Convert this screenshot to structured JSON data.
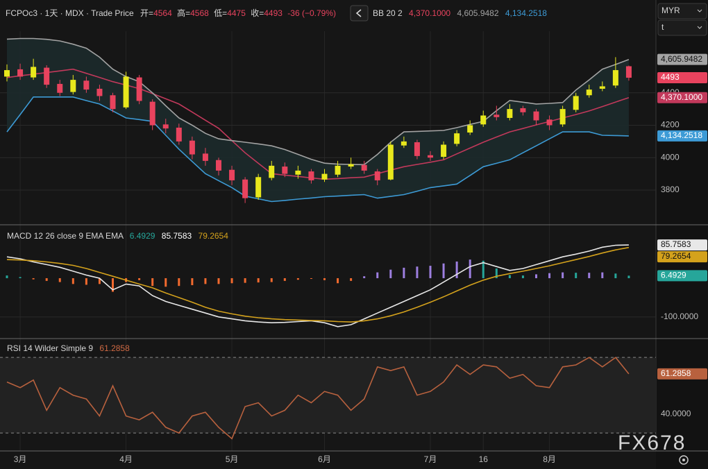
{
  "header": {
    "symbol": "FCPOc3 · 1天 · MDX · Trade Price",
    "open_label": "开=",
    "high_label": "高=",
    "low_label": "低=",
    "close_label": "收=",
    "change": "-36 (−0.79%)"
  },
  "controls": {
    "currency": "MYR",
    "field": "t"
  },
  "watermark": "FX678",
  "chart_data": [
    {
      "type": "candlestick",
      "categories": [
        null,
        "3月",
        null,
        null,
        null,
        null,
        null,
        null,
        null,
        "4月",
        null,
        null,
        null,
        null,
        null,
        null,
        null,
        "5月",
        null,
        null,
        null,
        null,
        null,
        null,
        "6月",
        null,
        null,
        null,
        null,
        null,
        null,
        null,
        "7月",
        null,
        null,
        null,
        "16",
        null,
        null,
        null,
        null,
        "8月",
        null,
        null,
        null,
        null,
        null,
        null
      ],
      "open": [
        4500,
        4545,
        4495,
        4555,
        4455,
        4405,
        4475,
        4425,
        4385,
        4310,
        4495,
        4345,
        4205,
        4185,
        4105,
        4025,
        3985,
        3925,
        3865,
        3755,
        3875,
        3945,
        3895,
        3915,
        3865,
        3895,
        3945,
        3955,
        3915,
        3865,
        4075,
        4095,
        4015,
        4005,
        4085,
        4155,
        4205,
        4265,
        4245,
        4305,
        4285,
        4235,
        4205,
        4295,
        4385,
        4425,
        4445,
        4564
      ],
      "high": [
        4575,
        4580,
        4610,
        4570,
        4480,
        4510,
        4500,
        4450,
        4400,
        4530,
        4510,
        4360,
        4240,
        4210,
        4130,
        4060,
        4000,
        3950,
        3880,
        3900,
        3980,
        3970,
        3950,
        3930,
        3930,
        3980,
        4000,
        3980,
        3930,
        4100,
        4130,
        4110,
        4040,
        4100,
        4170,
        4230,
        4290,
        4320,
        4330,
        4320,
        4300,
        4260,
        4320,
        4400,
        4450,
        4470,
        4620,
        4568
      ],
      "low": [
        4470,
        4480,
        4480,
        4430,
        4380,
        4390,
        4400,
        4350,
        4280,
        4300,
        4330,
        4170,
        4150,
        4080,
        3990,
        3950,
        3890,
        3830,
        3720,
        3740,
        3860,
        3880,
        3870,
        3840,
        3850,
        3880,
        3930,
        3900,
        3830,
        3860,
        4060,
        3990,
        3980,
        3990,
        4070,
        4140,
        4190,
        4230,
        4230,
        4260,
        4200,
        4170,
        4190,
        4280,
        4370,
        4410,
        4430,
        4475
      ],
      "close": [
        4540,
        4500,
        4560,
        4450,
        4400,
        4480,
        4420,
        4380,
        4300,
        4500,
        4350,
        4200,
        4180,
        4100,
        4020,
        3980,
        3920,
        3860,
        3750,
        3880,
        3950,
        3900,
        3920,
        3860,
        3900,
        3950,
        3960,
        3920,
        3860,
        4080,
        4100,
        4010,
        4000,
        4080,
        4150,
        4200,
        4260,
        4250,
        4300,
        4280,
        4230,
        4200,
        4300,
        4380,
        4420,
        4440,
        4540,
        4493
      ],
      "up_color": "#e8e81c",
      "down_color": "#e8435e",
      "overlay": {
        "name": "BB 20 2",
        "fill": "#1c2a2b",
        "lines": [
          {
            "color": "#c2395b",
            "values": [
              4494,
              4505,
              4515,
              4525,
              4535,
              4546,
              4520,
              4495,
              4469,
              4448,
              4426,
              4395,
              4363,
              4331,
              4281,
              4231,
              4181,
              4105,
              4030,
              3965,
              3901,
              3892,
              3884,
              3875,
              3867,
              3871,
              3876,
              3880,
              3901,
              3923,
              3944,
              3958,
              3972,
              3987,
              4023,
              4059,
              4095,
              4127,
              4159,
              4180,
              4202,
              4223,
              4245,
              4266,
              4288,
              4315,
              4343,
              4370.1
            ]
          },
          {
            "color": "#a3a3a3",
            "values": [
              4731,
              4735,
              4735,
              4730,
              4720,
              4700,
              4675,
              4620,
              4546,
              4500,
              4469,
              4400,
              4320,
              4245,
              4200,
              4150,
              4116,
              4105,
              4095,
              4085,
              4073,
              4050,
              4020,
              3990,
              3966,
              3960,
              3958,
              3957,
              4020,
              4095,
              4159,
              4162,
              4165,
              4168,
              4185,
              4205,
              4224,
              4290,
              4353,
              4342,
              4331,
              4335,
              4340,
              4417,
              4480,
              4546,
              4575,
              4605.9482
            ]
          },
          {
            "color": "#3d9bd6",
            "values": [
              4159,
              4266,
              4374,
              4374,
              4374,
              4374,
              4352,
              4331,
              4288,
              4245,
              4235,
              4224,
              4138,
              4052,
              3976,
              3901,
              3858,
              3815,
              3763,
              3746,
              3729,
              3736,
              3744,
              3751,
              3759,
              3763,
              3768,
              3772,
              3750,
              3761,
              3772,
              3793,
              3815,
              3826,
              3837,
              3890,
              3944,
              3965,
              3987,
              4030,
              4073,
              4116,
              4159,
              4159,
              4159,
              4138,
              4136,
              4134.2518
            ]
          }
        ]
      },
      "price_labels": [
        {
          "value": 4370.1,
          "label": "4,370.1000"
        },
        {
          "value": 4605.9482,
          "label": "4,605.9482"
        },
        {
          "value": 4134.2518,
          "label": "4,134.2518"
        }
      ],
      "ylim": [
        3590,
        4780
      ],
      "yticks": [
        3800,
        4000,
        4200,
        4400
      ],
      "grid": true
    },
    {
      "type": "macd",
      "title": "MACD 12 26 close 9 EMA EMA",
      "series": [
        {
          "color": "#26a69a",
          "values": [
            7,
            3,
            -3,
            -7,
            -10,
            -15,
            -17,
            -15,
            -35,
            -10,
            -5,
            -20,
            -22,
            -20,
            -18,
            -15,
            -15,
            -13,
            -12,
            -11,
            -10,
            -7,
            -4,
            -1,
            -5,
            -13,
            -7,
            5,
            15,
            22,
            27,
            30,
            32,
            38,
            43,
            48,
            45,
            25,
            8,
            7,
            10,
            13,
            15,
            14,
            14,
            15,
            12,
            6.4929
          ]
        },
        {
          "color": "#e8e8e8",
          "values": [
            55,
            50,
            42,
            35,
            28,
            18,
            8,
            0,
            -30,
            -15,
            -20,
            -45,
            -60,
            -70,
            -80,
            -90,
            -100,
            -105,
            -110,
            -113,
            -115,
            -114,
            -112,
            -110,
            -115,
            -125,
            -120,
            -105,
            -90,
            -75,
            -60,
            -45,
            -30,
            -10,
            10,
            30,
            40,
            30,
            20,
            25,
            35,
            45,
            55,
            62,
            70,
            80,
            85,
            85.7583
          ]
        },
        {
          "color": "#d4a21c",
          "values": [
            48,
            47,
            45,
            42,
            38,
            33,
            25,
            15,
            5,
            -5,
            -15,
            -25,
            -38,
            -50,
            -62,
            -75,
            -85,
            -92,
            -98,
            -102,
            -105,
            -107,
            -108,
            -109,
            -110,
            -112,
            -113,
            -110,
            -105,
            -97,
            -87,
            -75,
            -62,
            -48,
            -33,
            -18,
            -5,
            5,
            12,
            18,
            25,
            32,
            40,
            48,
            56,
            65,
            73,
            79.2654
          ]
        }
      ],
      "rising_color": "#9d7fe0",
      "negative_color": "#f26a2e",
      "ylim": [
        -154,
        136
      ],
      "yticks": [
        {
          "value": -100,
          "label": "-100.0000"
        }
      ],
      "grid": true
    },
    {
      "type": "rsi",
      "title": "RSI 14 Wilder Simple 9",
      "color": "#b8613e",
      "values": [
        57,
        54,
        58,
        42,
        54,
        50,
        48,
        39,
        55,
        39,
        37,
        41,
        33,
        30,
        39,
        41,
        33,
        27,
        44,
        46,
        39,
        42,
        50,
        46,
        52,
        50,
        42,
        48,
        65,
        63,
        65,
        50,
        52,
        57,
        66,
        61,
        66,
        65,
        59,
        61,
        55,
        54,
        65,
        66,
        70,
        65,
        70,
        61.2858
      ],
      "bands": [
        30,
        70
      ],
      "band_fill": "#222222",
      "ylim": [
        20.5,
        79.6
      ],
      "yticks": [
        {
          "value": 40,
          "label": "40.0000"
        }
      ],
      "grid": true
    }
  ]
}
